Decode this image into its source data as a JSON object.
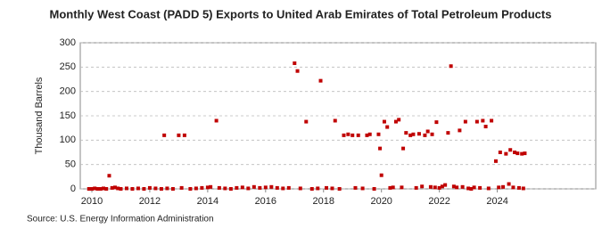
{
  "chart_data": {
    "type": "scatter",
    "title": "Monthly West Coast (PADD 5) Exports to United Arab Emirates of Total Petroleum Products",
    "y_label": "Thousand Barrels",
    "source": "Source: U.S. Energy Information Administration",
    "color": "#c00000",
    "grid": true,
    "xlim": [
      2009.6,
      2027.4
    ],
    "ylim": [
      0,
      300
    ],
    "xticks": [
      2010,
      2012,
      2014,
      2016,
      2018,
      2020,
      2022,
      2024
    ],
    "yticks": [
      0,
      50,
      100,
      150,
      200,
      250,
      300
    ],
    "x": [
      2009.9,
      2010.0,
      2010.1,
      2010.2,
      2010.3,
      2010.4,
      2010.5,
      2010.6,
      2010.7,
      2010.8,
      2010.9,
      2011.0,
      2011.2,
      2011.4,
      2011.6,
      2011.8,
      2012.0,
      2012.2,
      2012.4,
      2012.5,
      2012.6,
      2012.8,
      2013.0,
      2013.1,
      2013.2,
      2013.4,
      2013.6,
      2013.8,
      2014.0,
      2014.1,
      2014.3,
      2014.4,
      2014.6,
      2014.8,
      2015.0,
      2015.2,
      2015.4,
      2015.6,
      2015.8,
      2016.0,
      2016.2,
      2016.4,
      2016.6,
      2016.8,
      2017.0,
      2017.1,
      2017.2,
      2017.4,
      2017.6,
      2017.8,
      2017.9,
      2018.1,
      2018.3,
      2018.4,
      2018.55,
      2018.7,
      2018.85,
      2019.0,
      2019.1,
      2019.2,
      2019.35,
      2019.5,
      2019.6,
      2019.75,
      2019.9,
      2019.95,
      2020.0,
      2020.1,
      2020.2,
      2020.3,
      2020.4,
      2020.5,
      2020.6,
      2020.7,
      2020.75,
      2020.85,
      2021.0,
      2021.1,
      2021.2,
      2021.3,
      2021.4,
      2021.5,
      2021.6,
      2021.7,
      2021.75,
      2021.85,
      2021.9,
      2022.0,
      2022.1,
      2022.2,
      2022.3,
      2022.4,
      2022.5,
      2022.6,
      2022.7,
      2022.8,
      2022.9,
      2023.0,
      2023.1,
      2023.2,
      2023.3,
      2023.4,
      2023.5,
      2023.6,
      2023.7,
      2023.8,
      2023.95,
      2024.05,
      2024.1,
      2024.2,
      2024.3,
      2024.4,
      2024.45,
      2024.55,
      2024.6,
      2024.7,
      2024.75,
      2024.85,
      2024.9,
      2024.95
    ],
    "values": [
      0,
      0,
      1,
      0,
      0,
      1,
      0,
      27,
      2,
      3,
      1,
      0,
      1,
      0,
      1,
      0,
      2,
      1,
      0,
      110,
      1,
      0,
      110,
      2,
      110,
      0,
      1,
      2,
      3,
      4,
      140,
      2,
      1,
      0,
      2,
      3,
      1,
      4,
      2,
      3,
      4,
      2,
      1,
      2,
      258,
      242,
      1,
      138,
      0,
      1,
      222,
      2,
      1,
      140,
      0,
      110,
      112,
      110,
      2,
      110,
      1,
      110,
      112,
      0,
      112,
      83,
      28,
      138,
      127,
      2,
      3,
      138,
      142,
      3,
      83,
      115,
      110,
      112,
      2,
      113,
      5,
      110,
      118,
      4,
      112,
      3,
      137,
      2,
      5,
      8,
      115,
      252,
      5,
      3,
      120,
      4,
      138,
      1,
      0,
      3,
      138,
      2,
      140,
      128,
      1,
      140,
      57,
      3,
      75,
      4,
      72,
      10,
      80,
      3,
      75,
      73,
      2,
      72,
      1,
      73
    ]
  }
}
